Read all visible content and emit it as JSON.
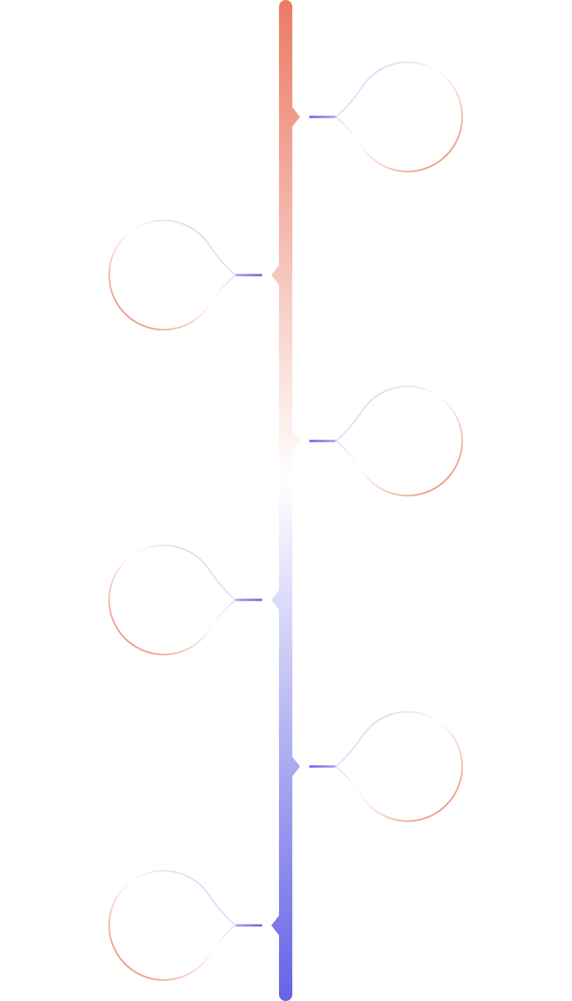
{
  "colors": {
    "accent_warm": "#EB7A65",
    "accent_cool": "#6563E5",
    "light": "#FFFFFF",
    "connector_mid": "#A7A4E3"
  },
  "timeline": {
    "orientation": "vertical",
    "gradient": [
      "#EB7A65",
      "#FFFFFF",
      "#6563E5"
    ],
    "nodes": [
      {
        "side": "right"
      },
      {
        "side": "left"
      },
      {
        "side": "right"
      },
      {
        "side": "left"
      },
      {
        "side": "right"
      },
      {
        "side": "left"
      }
    ]
  }
}
